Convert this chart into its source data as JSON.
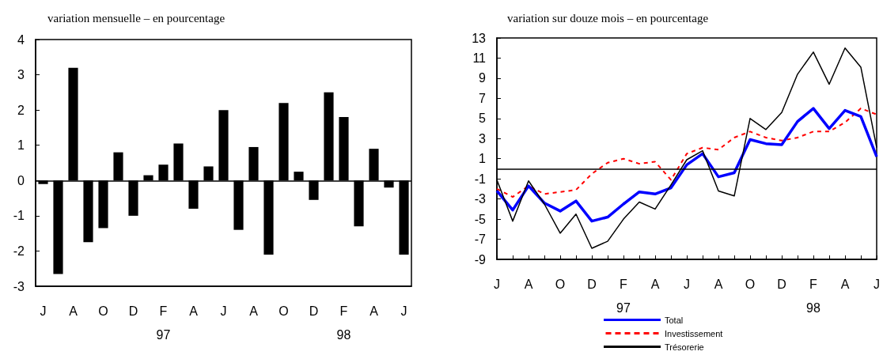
{
  "chart_data": [
    {
      "type": "bar",
      "title": "variation mensuelle – en pourcentage",
      "categories": [
        "J",
        null,
        "A",
        null,
        "O",
        null,
        "D",
        null,
        "F\n97",
        null,
        "A",
        null,
        "J",
        null,
        "A",
        null,
        "O",
        null,
        "D",
        null,
        "F\n98",
        null,
        "A",
        null,
        "J"
      ],
      "values": [
        -0.1,
        -2.65,
        3.2,
        -1.75,
        -1.35,
        0.8,
        -1.0,
        0.15,
        0.45,
        1.05,
        -0.8,
        0.4,
        2.0,
        -1.4,
        0.95,
        -2.1,
        2.2,
        0.25,
        -0.55,
        2.5,
        1.8,
        -1.3,
        0.9,
        -0.2,
        -2.1
      ],
      "color": "#000000",
      "ylim": [
        -3,
        4
      ],
      "yticks": [
        -3,
        -2,
        -1,
        0,
        1,
        2,
        3,
        4
      ],
      "grid": false,
      "legend": false,
      "ref_lines": [
        {
          "axis": "y",
          "value": 0,
          "label": null,
          "color": "#000000",
          "line_style": "solid"
        }
      ]
    },
    {
      "type": "line",
      "title": "variation sur douze mois – en pourcentage",
      "categories": [
        "J",
        null,
        "A",
        null,
        "O",
        null,
        "D",
        null,
        "F\n97",
        null,
        "A",
        null,
        "J",
        null,
        "A",
        null,
        "O",
        null,
        "D",
        null,
        "F\n98",
        null,
        "A",
        null,
        "J"
      ],
      "series": [
        {
          "name": "Total",
          "color": "#0000ff",
          "line_style": "solid",
          "values": [
            -2.2,
            -4.1,
            -1.7,
            -3.4,
            -4.2,
            -3.2,
            -5.2,
            -4.8,
            -3.5,
            -2.3,
            -2.5,
            -1.9,
            0.4,
            1.5,
            -0.8,
            -0.4,
            2.9,
            2.5,
            2.4,
            4.7,
            6.0,
            4.0,
            5.8,
            5.2,
            1.2
          ]
        },
        {
          "name": "Investissement",
          "color": "#ff0000",
          "line_style": "dashed",
          "values": [
            -2.0,
            -2.8,
            -1.7,
            -2.5,
            -2.3,
            -2.1,
            -0.5,
            0.6,
            1.0,
            0.5,
            0.7,
            -1.1,
            1.5,
            2.1,
            1.9,
            3.1,
            3.7,
            3.1,
            2.8,
            3.1,
            3.7,
            3.7,
            4.6,
            6.0,
            5.4
          ]
        },
        {
          "name": "Trésorerie",
          "color": "#000000",
          "line_style": "solid",
          "values": [
            -1.1,
            -5.2,
            -1.2,
            -3.5,
            -6.4,
            -4.5,
            -7.9,
            -7.2,
            -5.0,
            -3.3,
            -4.0,
            -1.6,
            0.9,
            1.8,
            -2.2,
            -2.7,
            5.0,
            3.9,
            5.6,
            9.4,
            11.6,
            8.4,
            12.0,
            10.1,
            2.1
          ]
        }
      ],
      "ylim": [
        -9,
        13
      ],
      "yticks": [
        -9,
        -7,
        -5,
        -3,
        -1,
        1,
        3,
        5,
        7,
        9,
        11,
        13
      ],
      "grid": false,
      "legend": "bottom",
      "marker": "none",
      "ref_lines": [
        {
          "axis": "y",
          "value": 0,
          "label": null,
          "color": "#000000",
          "line_style": "solid"
        }
      ]
    }
  ]
}
